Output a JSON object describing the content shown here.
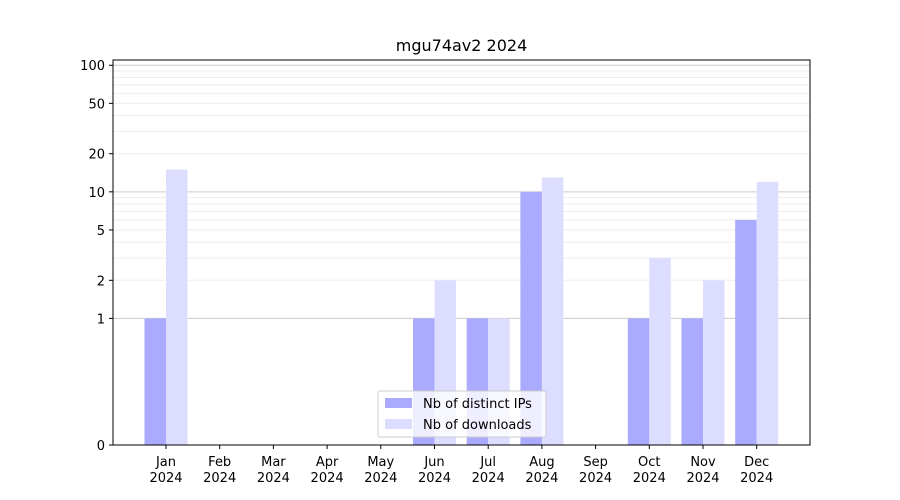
{
  "chart_data": {
    "type": "bar",
    "title": "mgu74av2 2024",
    "xlabel": "",
    "ylabel": "",
    "yscale": "symlog",
    "ylim": [
      0,
      110
    ],
    "y_ticks": [
      0,
      1,
      2,
      5,
      10,
      20,
      50,
      100
    ],
    "categories": [
      [
        "Jan",
        "2024"
      ],
      [
        "Feb",
        "2024"
      ],
      [
        "Mar",
        "2024"
      ],
      [
        "Apr",
        "2024"
      ],
      [
        "May",
        "2024"
      ],
      [
        "Jun",
        "2024"
      ],
      [
        "Jul",
        "2024"
      ],
      [
        "Aug",
        "2024"
      ],
      [
        "Sep",
        "2024"
      ],
      [
        "Oct",
        "2024"
      ],
      [
        "Nov",
        "2024"
      ],
      [
        "Dec",
        "2024"
      ]
    ],
    "series": [
      {
        "name": "Nb of distinct IPs",
        "color": "#aaaaff",
        "values": [
          1,
          0,
          0,
          0,
          0,
          1,
          1,
          10,
          0,
          1,
          1,
          6
        ]
      },
      {
        "name": "Nb of downloads",
        "color": "#ddddff",
        "values": [
          15,
          0,
          0,
          0,
          0,
          2,
          1,
          13,
          0,
          3,
          2,
          12
        ]
      }
    ],
    "legend_position": "lower center",
    "grid": true
  }
}
